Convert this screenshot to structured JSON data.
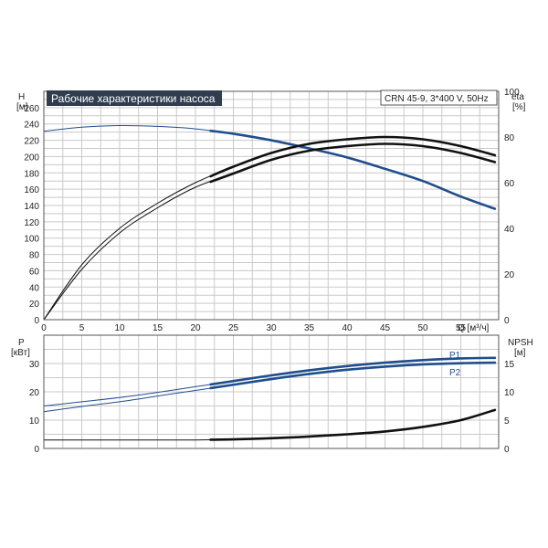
{
  "chart_data": [
    {
      "id": "head-eta",
      "type": "line",
      "title": "Рабочие характеристики насоса",
      "model_label": "CRN 45-9, 3*400 V, 50Hz",
      "xlabel": "Q [м³/ч]",
      "ylabel": "H",
      "ylabel_unit": "[м]",
      "y2label": "eta",
      "y2label_unit": "[%]",
      "xlim": [
        0,
        60
      ],
      "ylim": [
        0,
        280
      ],
      "y2lim": [
        0,
        100
      ],
      "grid": true,
      "x_ticks": [
        "0",
        "5",
        "10",
        "15",
        "20",
        "25",
        "30",
        "35",
        "40",
        "45",
        "50",
        "55"
      ],
      "y_ticks": [
        "0",
        "20",
        "40",
        "60",
        "80",
        "100",
        "120",
        "140",
        "160",
        "180",
        "200",
        "220",
        "240",
        "260"
      ],
      "y2_ticks": [
        "0",
        "20",
        "40",
        "60",
        "80",
        "100"
      ],
      "series": [
        {
          "key": "H",
          "axis": "y",
          "color": "#1f4e8c",
          "x": [
            0,
            5,
            10,
            15,
            20,
            25,
            30,
            35,
            40,
            45,
            50,
            55,
            59.5
          ],
          "y": [
            231,
            236,
            238,
            237,
            234,
            228,
            220,
            210,
            199,
            185,
            170,
            151,
            136
          ]
        },
        {
          "key": "eta_1",
          "axis": "y2",
          "color": "#111111",
          "x": [
            0,
            5,
            10,
            15,
            20,
            25,
            30,
            35,
            40,
            45,
            50,
            55,
            59.5
          ],
          "y": [
            0,
            24,
            40,
            51,
            60,
            67,
            73,
            77,
            79,
            80,
            79,
            76,
            72
          ]
        },
        {
          "key": "eta_2",
          "axis": "y2",
          "color": "#111111",
          "x": [
            0,
            5,
            10,
            15,
            20,
            25,
            30,
            35,
            40,
            45,
            50,
            55,
            59.5
          ],
          "y": [
            0,
            22,
            38,
            49,
            58,
            64,
            70,
            74,
            76,
            77,
            76,
            73,
            69
          ]
        }
      ]
    },
    {
      "id": "power-npsh",
      "type": "line",
      "xlim": [
        0,
        60
      ],
      "ylim": [
        0,
        40
      ],
      "y2lim": [
        0,
        20
      ],
      "ylabel": "P",
      "ylabel_unit": "[кВт]",
      "y2label": "NPSH",
      "y2label_unit": "[м]",
      "grid": true,
      "y_ticks": [
        "0",
        "10",
        "20",
        "30"
      ],
      "y2_ticks": [
        "0",
        "5",
        "10",
        "15"
      ],
      "series": [
        {
          "name": "P1",
          "axis": "y",
          "color": "#1f4e8c",
          "x": [
            0,
            5,
            10,
            15,
            20,
            25,
            30,
            35,
            40,
            45,
            50,
            55,
            59.5
          ],
          "y": [
            15,
            16.5,
            18,
            19.8,
            21.8,
            23.8,
            25.8,
            27.6,
            29.1,
            30.3,
            31.2,
            31.8,
            32
          ]
        },
        {
          "name": "P2",
          "axis": "y",
          "color": "#1f4e8c",
          "x": [
            0,
            5,
            10,
            15,
            20,
            25,
            30,
            35,
            40,
            45,
            50,
            55,
            59.5
          ],
          "y": [
            13,
            14.8,
            16.5,
            18.5,
            20.5,
            22.5,
            24.5,
            26.3,
            27.8,
            28.9,
            29.7,
            30.1,
            30.3
          ]
        },
        {
          "key": "NPSH",
          "axis": "y2",
          "color": "#111111",
          "x": [
            0,
            5,
            10,
            15,
            20,
            25,
            30,
            35,
            40,
            45,
            50,
            55,
            59.5
          ],
          "y": [
            1.5,
            1.5,
            1.5,
            1.5,
            1.5,
            1.6,
            1.8,
            2.1,
            2.5,
            3.0,
            3.8,
            5.0,
            6.8
          ]
        }
      ]
    }
  ]
}
